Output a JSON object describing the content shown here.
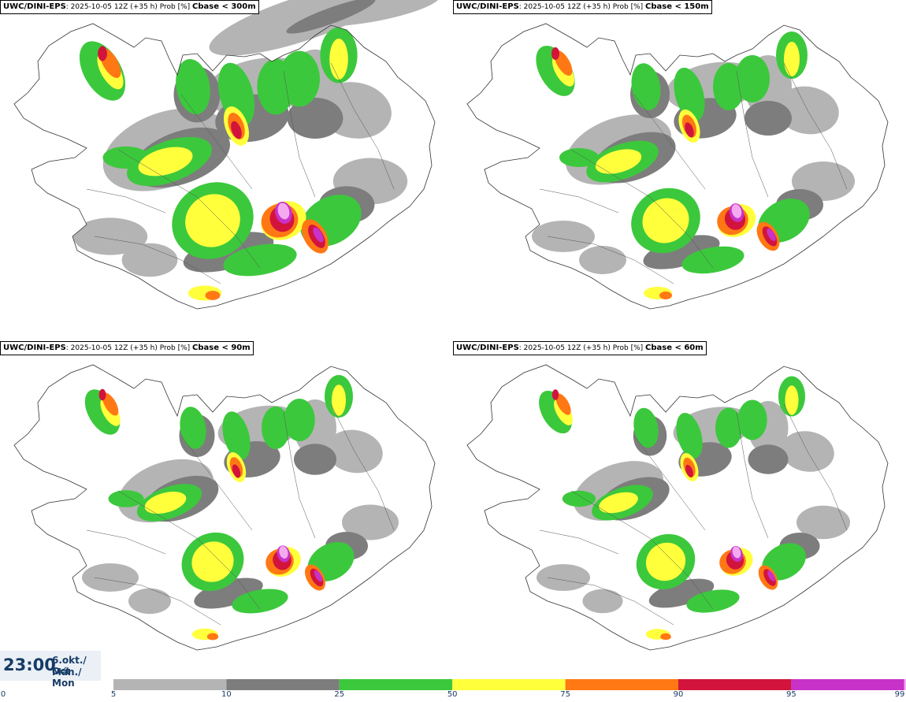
{
  "panels": [
    {
      "model": "UWC/DINI-EPS",
      "run": ": 2025-10-05 12Z (+35 h) Prob [%] ",
      "variable": "Cbase < 300m",
      "scale": 1.18
    },
    {
      "model": "UWC/DINI-EPS",
      "run": ": 2025-10-05 12Z (+35 h) Prob [%] ",
      "variable": "Cbase < 150m",
      "scale": 1.0
    },
    {
      "model": "UWC/DINI-EPS",
      "run": ": 2025-10-05 12Z (+35 h) Prob [%] ",
      "variable": "Cbase < 90m",
      "scale": 0.9
    },
    {
      "model": "UWC/DINI-EPS",
      "run": ": 2025-10-05 12Z (+35 h) Prob [%] ",
      "variable": "Cbase < 60m",
      "scale": 0.85
    }
  ],
  "time": {
    "hour": "23:00",
    "date": "6.okt./ Oct",
    "weekday": "Mán./ Mon"
  },
  "legend": {
    "ticks": [
      "0",
      "5",
      "10",
      "25",
      "50",
      "75",
      "90",
      "95",
      "99"
    ],
    "colors": {
      "5": "#b4b4b4",
      "10": "#7d7d7d",
      "25": "#3cc83c",
      "50": "#ffff3c",
      "75": "#ff7814",
      "90": "#d2143c",
      "95": "#c832c8",
      "99": "#f5aaf0"
    }
  }
}
